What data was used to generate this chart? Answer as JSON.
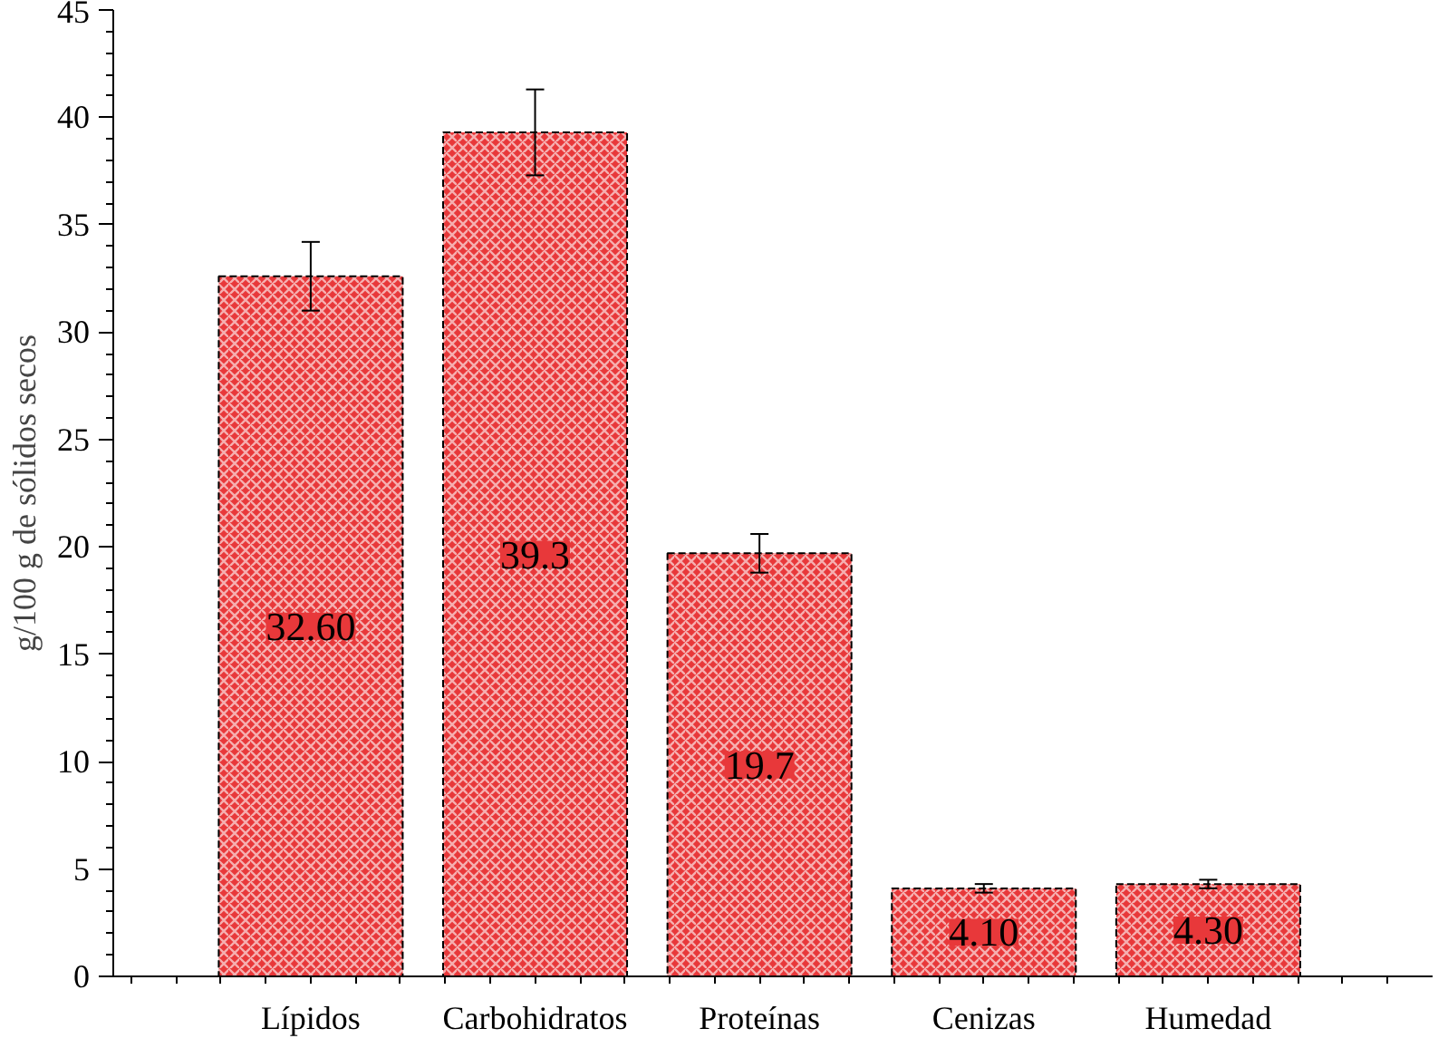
{
  "chart_data": {
    "type": "bar",
    "ylabel": "g/100 g de sólidos secos",
    "categories": [
      "Lípidos",
      "Carbohidratos",
      "Proteínas",
      "Cenizas",
      "Humedad"
    ],
    "values": [
      32.6,
      39.3,
      19.7,
      4.1,
      4.3
    ],
    "value_labels": [
      "32.60",
      "39.3",
      "19.7",
      "4.10",
      "4.30"
    ],
    "errors": [
      1.6,
      2.0,
      0.9,
      0.2,
      0.2
    ],
    "color": "#e8383a",
    "ylim": [
      0,
      45
    ],
    "yticks": [
      0,
      5,
      10,
      15,
      20,
      25,
      30,
      35,
      40,
      45
    ],
    "grid": false
  }
}
